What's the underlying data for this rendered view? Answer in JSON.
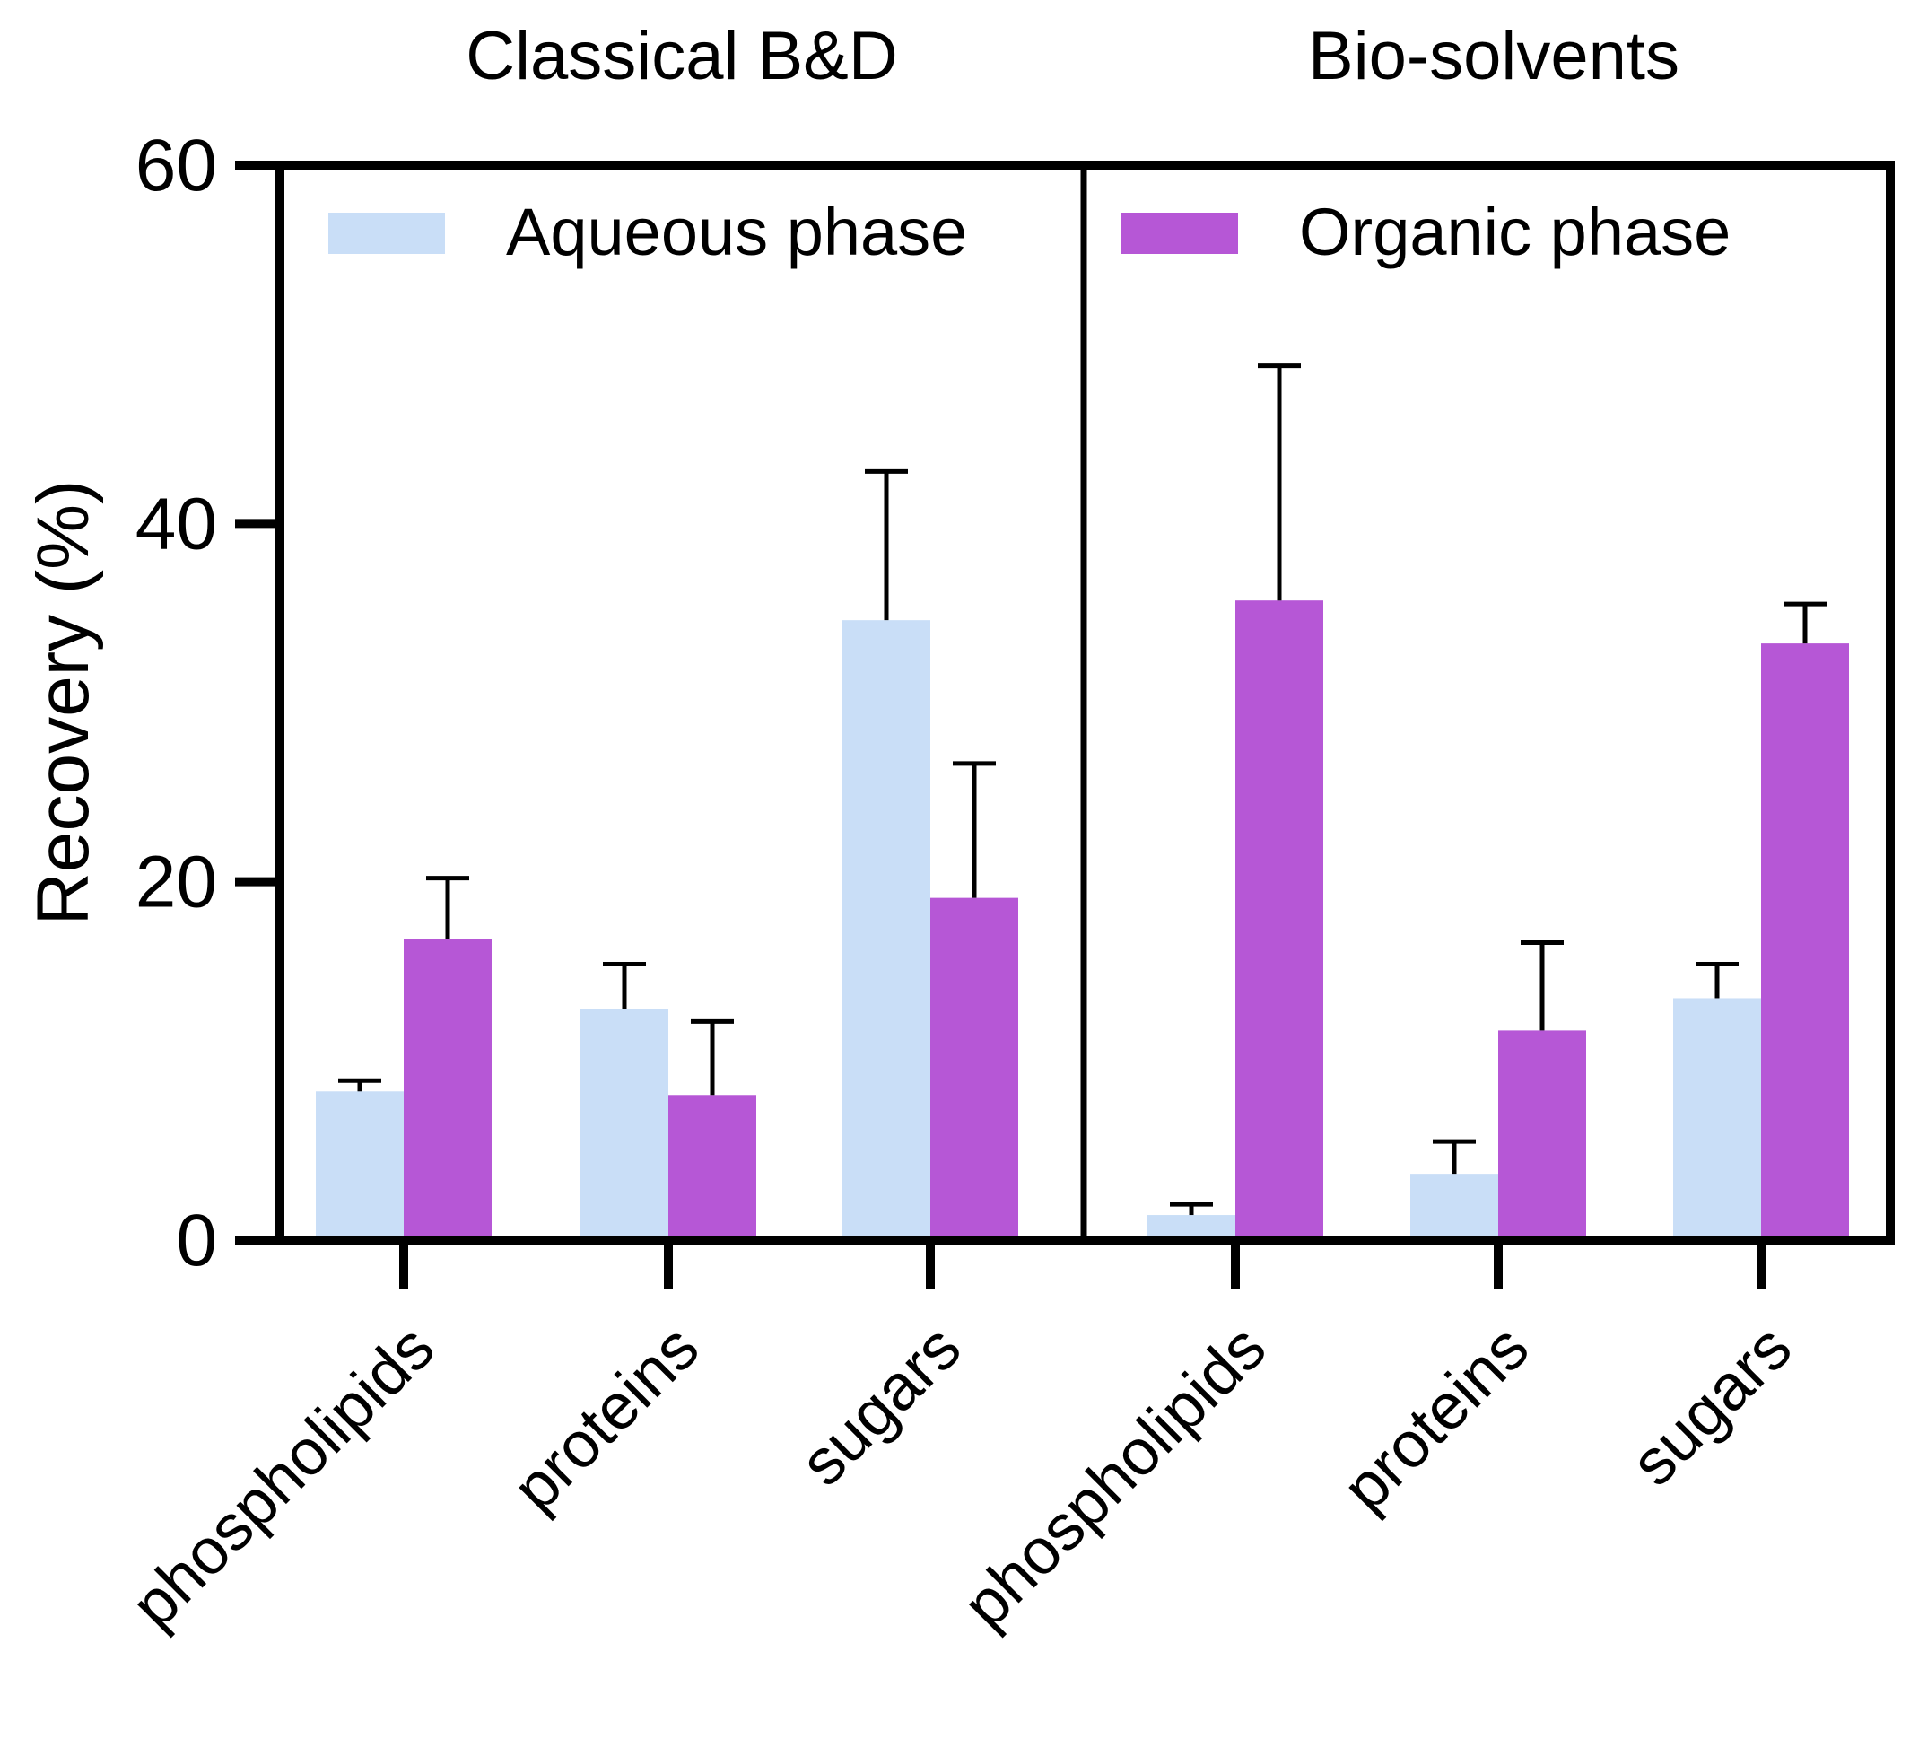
{
  "chart_data": {
    "type": "bar",
    "ylabel": "Recovery (%)",
    "ylim": [
      0,
      60
    ],
    "yticks": [
      0,
      20,
      40,
      60
    ],
    "colors": {
      "aqueous": "#c9def7",
      "organic": "#b657d6",
      "axis": "#000000"
    },
    "panels": [
      {
        "title": "Classical B&D",
        "categories": [
          "phospholipids",
          "proteins",
          "sugars"
        ],
        "series": [
          {
            "name": "Aqueous phase",
            "key": "aqueous",
            "values": [
              8.3,
              12.9,
              34.6
            ],
            "errors": [
              0.6,
              2.5,
              8.3
            ]
          },
          {
            "name": "Organic phase",
            "key": "organic",
            "values": [
              16.8,
              8.1,
              19.1
            ],
            "errors": [
              3.4,
              4.1,
              7.5
            ]
          }
        ],
        "legend": {
          "entry": "Aqueous phase",
          "key": "aqueous",
          "position": "top-left"
        }
      },
      {
        "title": "Bio-solvents",
        "categories": [
          "phospholipids",
          "proteins",
          "sugars"
        ],
        "series": [
          {
            "name": "Aqueous phase",
            "key": "aqueous",
            "values": [
              1.4,
              3.7,
              13.5
            ],
            "errors": [
              0.6,
              1.8,
              1.9
            ]
          },
          {
            "name": "Organic phase",
            "key": "organic",
            "values": [
              35.7,
              11.7,
              33.3
            ],
            "errors": [
              13.1,
              4.9,
              2.2
            ]
          }
        ],
        "legend": {
          "entry": "Organic phase",
          "key": "organic",
          "position": "top-left"
        }
      }
    ]
  }
}
